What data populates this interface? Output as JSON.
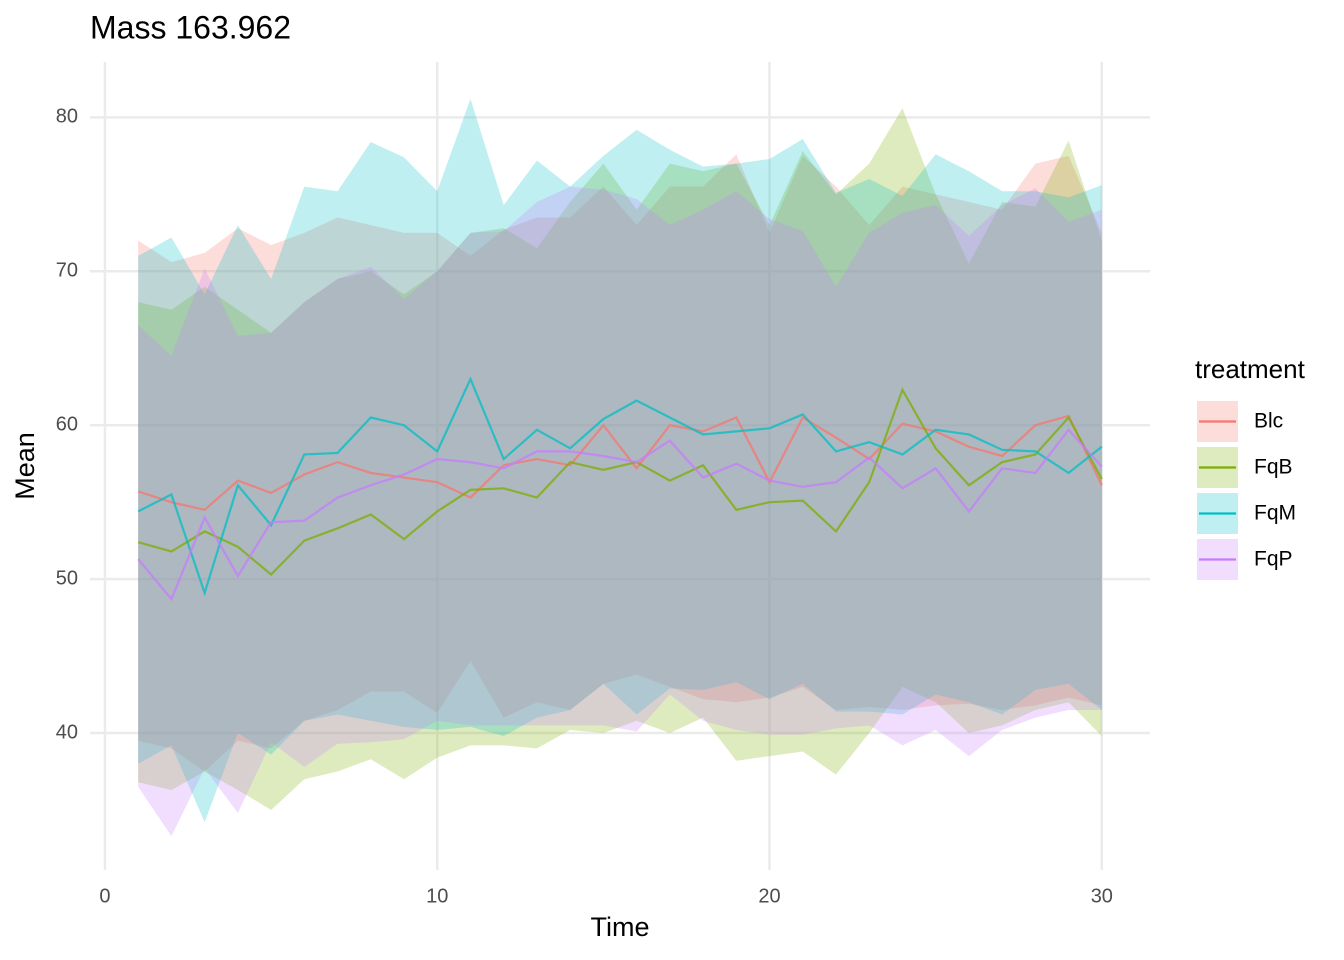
{
  "chart_data": {
    "type": "line",
    "title": "Mass 163.962",
    "x_label": "Time",
    "y_label": "Mean",
    "legend_title": "treatment",
    "legend_position": "right",
    "grid": true,
    "xlim": [
      -0.45,
      31.45
    ],
    "xticks": [
      0,
      10,
      20,
      30
    ],
    "ylim": [
      31.1,
      83.6
    ],
    "yticks": [
      40,
      50,
      60,
      70,
      80
    ],
    "x": [
      1,
      2,
      3,
      4,
      5,
      6,
      7,
      8,
      9,
      10,
      11,
      12,
      13,
      14,
      15,
      16,
      17,
      18,
      19,
      20,
      21,
      22,
      23,
      24,
      25,
      26,
      27,
      28,
      29,
      30
    ],
    "series": [
      {
        "name": "Blc",
        "color": "#F8766D",
        "values": [
          55.7,
          55.0,
          54.5,
          56.4,
          55.6,
          56.8,
          57.6,
          56.9,
          56.6,
          56.3,
          55.3,
          57.4,
          57.8,
          57.4,
          60.0,
          57.2,
          60.0,
          59.6,
          60.5,
          56.3,
          60.5,
          59.2,
          57.8,
          60.1,
          59.6,
          58.6,
          58.0,
          60.0,
          60.6,
          56.1
        ],
        "upper": [
          72,
          70.6,
          71.2,
          72.8,
          71.7,
          72.5,
          73.5,
          73,
          72.5,
          72.5,
          71,
          72.7,
          73.5,
          73.5,
          75.5,
          73,
          75.5,
          75.5,
          77.6,
          72.5,
          77.5,
          75.5,
          73,
          75.5,
          75,
          74.5,
          74,
          77,
          77.5,
          72.5
        ],
        "lower": [
          39.5,
          39,
          37.5,
          39.5,
          39,
          40.8,
          41.5,
          42.7,
          42.7,
          41.3,
          44.7,
          41,
          42,
          41.5,
          43.2,
          43.8,
          43,
          42.2,
          42,
          42.3,
          43,
          41.5,
          41.7,
          41.5,
          41.8,
          41.9,
          41.5,
          41.8,
          42.3,
          41.8
        ]
      },
      {
        "name": "FqB",
        "color": "#7CAE00",
        "values": [
          52.4,
          51.8,
          53.1,
          52.1,
          50.3,
          52.5,
          53.3,
          54.2,
          52.6,
          54.4,
          55.8,
          55.9,
          55.3,
          57.6,
          57.1,
          57.6,
          56.4,
          57.4,
          54.5,
          55.0,
          55.1,
          53.1,
          56.3,
          62.3,
          58.5,
          56.1,
          57.6,
          58.1,
          60.5,
          56.5
        ],
        "upper": [
          68,
          67.5,
          69,
          67.5,
          66,
          68,
          69.5,
          70,
          68.5,
          70,
          72.5,
          72.8,
          71.5,
          74.5,
          77,
          74,
          77,
          76.5,
          77,
          73,
          77.8,
          75,
          77,
          80.6,
          75,
          70.5,
          74.5,
          74.2,
          78.5,
          72
        ],
        "lower": [
          36.8,
          36.3,
          37.5,
          36.3,
          35,
          37,
          37.5,
          38.3,
          37,
          38.4,
          39.2,
          39.2,
          39,
          40.2,
          40,
          40.8,
          40,
          41,
          38.2,
          38.5,
          38.8,
          37.3,
          40,
          43,
          42,
          40,
          40.5,
          41.5,
          42,
          39.8
        ]
      },
      {
        "name": "FqM",
        "color": "#00BFC4",
        "values": [
          54.4,
          55.5,
          49.1,
          56.1,
          53.5,
          58.1,
          58.2,
          60.5,
          60.0,
          58.3,
          63.0,
          57.8,
          59.7,
          58.5,
          60.4,
          61.6,
          60.5,
          59.4,
          59.6,
          59.8,
          60.7,
          58.3,
          58.9,
          58.1,
          59.7,
          59.4,
          58.4,
          58.3,
          56.9,
          58.6
        ],
        "upper": [
          71,
          72.2,
          68.5,
          73,
          69.5,
          75.5,
          75.2,
          78.4,
          77.4,
          75.2,
          81.2,
          74.3,
          77.2,
          75.5,
          77.5,
          79.2,
          77.9,
          76.8,
          77,
          77.3,
          78.6,
          75.1,
          76,
          74.9,
          77.6,
          76.5,
          75.2,
          75.2,
          74.8,
          75.6
        ],
        "lower": [
          38,
          39.2,
          34.2,
          40,
          38.6,
          40.8,
          41.2,
          40.8,
          40.4,
          40.2,
          40.4,
          39.8,
          41,
          41.5,
          43.2,
          41.2,
          42.9,
          42.8,
          43.3,
          42.2,
          43.2,
          41.4,
          41.4,
          41.2,
          42.5,
          42,
          41.2,
          42.8,
          43.2,
          41.5
        ]
      },
      {
        "name": "FqP",
        "color": "#C77CFF",
        "values": [
          51.3,
          48.7,
          54.0,
          50.2,
          53.7,
          53.8,
          55.3,
          56.1,
          56.8,
          57.8,
          57.6,
          57.2,
          58.3,
          58.3,
          58.0,
          57.6,
          59.0,
          56.6,
          57.5,
          56.4,
          56.0,
          56.3,
          57.9,
          55.9,
          57.2,
          54.4,
          57.2,
          56.9,
          59.7,
          57.3
        ],
        "upper": [
          66.5,
          64.5,
          70.2,
          65.8,
          66,
          68,
          69.5,
          70.3,
          68.2,
          70,
          72.5,
          72.6,
          74.5,
          75.5,
          75.3,
          74.7,
          73,
          74,
          75.2,
          73.4,
          72.6,
          69,
          72.5,
          73.8,
          74.3,
          72.3,
          74.3,
          75.4,
          73.2,
          74
        ],
        "lower": [
          36.5,
          33.3,
          37.7,
          34.8,
          39.4,
          37.8,
          39.3,
          39.4,
          39.6,
          40.8,
          40.5,
          40.5,
          40.5,
          40.5,
          40.5,
          40.1,
          42.5,
          40.8,
          40.2,
          39.9,
          39.9,
          40.3,
          40.5,
          39.2,
          40.2,
          38.5,
          40.2,
          41,
          41.5,
          41.5
        ]
      }
    ]
  }
}
